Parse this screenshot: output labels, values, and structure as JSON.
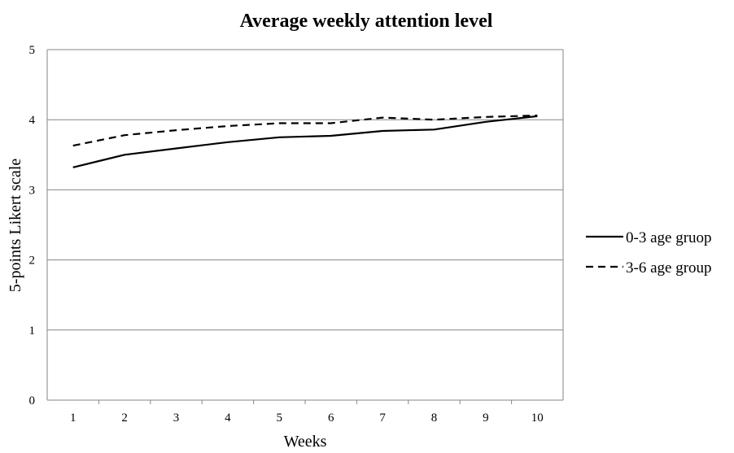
{
  "chart_data": {
    "type": "line",
    "title": "Average weekly attention level",
    "xlabel": "Weeks",
    "ylabel": "5-points Likert scale",
    "categories": [
      "1",
      "2",
      "3",
      "4",
      "5",
      "6",
      "7",
      "8",
      "9",
      "10"
    ],
    "ylim": [
      0,
      5
    ],
    "yticks": [
      "0",
      "1",
      "2",
      "3",
      "4",
      "5"
    ],
    "grid": true,
    "legend_position": "right",
    "series": [
      {
        "name": "0-3 age gruop",
        "style": "solid",
        "color": "#000000",
        "values": [
          3.32,
          3.5,
          3.59,
          3.68,
          3.75,
          3.77,
          3.84,
          3.86,
          3.97,
          4.05
        ]
      },
      {
        "name": "3-6 age group",
        "style": "dashed",
        "color": "#000000",
        "values": [
          3.63,
          3.78,
          3.85,
          3.91,
          3.95,
          3.95,
          4.03,
          4.0,
          4.04,
          4.06
        ]
      }
    ]
  }
}
